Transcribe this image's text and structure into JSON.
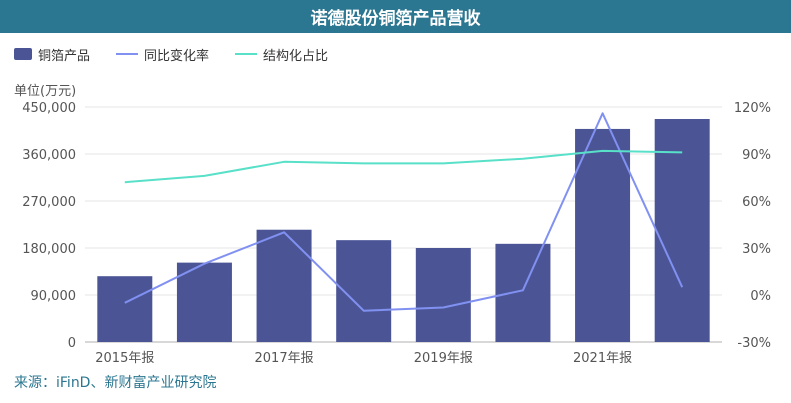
{
  "title": "诺德股份铜箔产品营收",
  "unit_label": "单位(万元)",
  "source": "来源：iFinD、新财富产业研究院",
  "colors": {
    "title_bg": "#2b7690",
    "bar": "#4b5596",
    "yoy_line": "#8191f2",
    "share_line": "#58e0c8"
  },
  "legend": [
    {
      "label": "铜箔产品",
      "kind": "bar",
      "color": "#4b5596"
    },
    {
      "label": "同比变化率",
      "kind": "line",
      "color": "#8191f2"
    },
    {
      "label": "结构化占比",
      "kind": "line",
      "color": "#58e0c8"
    }
  ],
  "chart_data": {
    "type": "bar",
    "x_tick_labels": [
      "2015年报",
      "2017年报",
      "2019年报",
      "2021年报"
    ],
    "x_tick_indices": [
      0,
      2,
      4,
      6
    ],
    "bar_count": 8,
    "series": [
      {
        "name": "铜箔产品",
        "type": "bar",
        "axis": "left",
        "values": [
          126000,
          152000,
          215000,
          195000,
          180000,
          188000,
          408000,
          427000
        ]
      },
      {
        "name": "同比变化率",
        "type": "line",
        "axis": "right",
        "values": [
          -5,
          20,
          40,
          -10,
          -8,
          3,
          116,
          5
        ]
      },
      {
        "name": "结构化占比",
        "type": "line",
        "axis": "right",
        "values": [
          72,
          76,
          85,
          84,
          84,
          87,
          92,
          91
        ]
      }
    ],
    "y_left": {
      "min": 0,
      "max": 450000,
      "ticks": [
        "0",
        "90,000",
        "180,000",
        "270,000",
        "360,000",
        "450,000"
      ]
    },
    "y_right": {
      "min": -30,
      "max": 120,
      "ticks": [
        "-30%",
        "0%",
        "30%",
        "60%",
        "90%",
        "120%"
      ]
    },
    "grid": true,
    "legend_position": "top-left"
  }
}
